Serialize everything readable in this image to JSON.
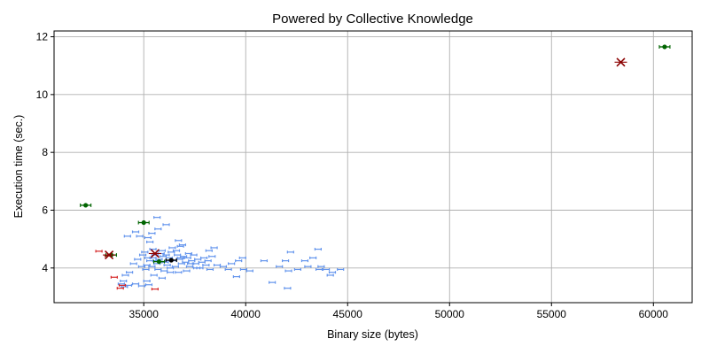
{
  "chart_data": {
    "type": "scatter",
    "title": "Powered by Collective Knowledge",
    "xlabel": "Binary size (bytes)",
    "ylabel": "Execution time (sec.)",
    "xlim": [
      30600,
      61900
    ],
    "ylim": [
      2.8,
      12.2
    ],
    "xticks": [
      35000,
      40000,
      45000,
      50000,
      55000,
      60000
    ],
    "yticks": [
      4,
      6,
      8,
      10,
      12
    ],
    "grid": true,
    "colors": {
      "cloud": "#6495ed",
      "red": "#d62728",
      "green": "#006400",
      "best": "#000000",
      "worst": "#8b0000",
      "grid": "#b0b0b0"
    },
    "series": [
      {
        "marker": "dash",
        "color": "#6495ed",
        "points": [
          [
            34950,
            4.45
          ],
          [
            35050,
            4.55
          ],
          [
            35200,
            4.35
          ],
          [
            35300,
            4.25
          ],
          [
            35450,
            4.65
          ],
          [
            35550,
            4.45
          ],
          [
            35650,
            4.15
          ],
          [
            35750,
            4.3
          ],
          [
            35850,
            4.5
          ],
          [
            35950,
            4.4
          ],
          [
            36050,
            4.2
          ],
          [
            36150,
            4.1
          ],
          [
            36250,
            4.35
          ],
          [
            36350,
            4.55
          ],
          [
            36450,
            4.25
          ],
          [
            36550,
            4.05
          ],
          [
            36650,
            4.45
          ],
          [
            36750,
            4.3
          ],
          [
            36850,
            4.15
          ],
          [
            36950,
            4.4
          ],
          [
            37050,
            4.2
          ],
          [
            37150,
            4.35
          ],
          [
            37250,
            4.05
          ],
          [
            37350,
            4.25
          ],
          [
            37450,
            4.45
          ],
          [
            37550,
            4.15
          ],
          [
            37650,
            4.3
          ],
          [
            37750,
            4.0
          ],
          [
            37850,
            4.2
          ],
          [
            37950,
            4.35
          ],
          [
            38050,
            4.1
          ],
          [
            38150,
            4.25
          ],
          [
            38250,
            3.95
          ],
          [
            38350,
            4.4
          ],
          [
            35400,
            4.05
          ],
          [
            35700,
            3.95
          ],
          [
            36000,
            3.9
          ],
          [
            36300,
            4.0
          ],
          [
            36700,
            3.85
          ],
          [
            37100,
            3.9
          ],
          [
            35150,
            4.1
          ],
          [
            35600,
            4.25
          ],
          [
            36100,
            4.45
          ],
          [
            36600,
            4.6
          ],
          [
            36900,
            4.8
          ],
          [
            37200,
            4.5
          ],
          [
            36400,
            4.7
          ],
          [
            35900,
            4.6
          ],
          [
            35300,
            4.9
          ],
          [
            36800,
            4.75
          ],
          [
            34600,
            5.25
          ],
          [
            34800,
            5.1
          ],
          [
            35200,
            5.05
          ],
          [
            35400,
            5.2
          ],
          [
            35700,
            5.35
          ],
          [
            36100,
            5.5
          ],
          [
            36700,
            4.95
          ],
          [
            34200,
            5.1
          ],
          [
            35650,
            5.75
          ],
          [
            38200,
            4.6
          ],
          [
            34500,
            4.15
          ],
          [
            34700,
            4.3
          ],
          [
            34900,
            4.05
          ],
          [
            35100,
            3.95
          ],
          [
            34300,
            3.85
          ],
          [
            34100,
            3.75
          ],
          [
            34000,
            3.55
          ],
          [
            33900,
            3.45
          ],
          [
            34250,
            3.4
          ],
          [
            34600,
            3.45
          ],
          [
            34900,
            3.38
          ],
          [
            35250,
            3.42
          ],
          [
            35150,
            3.55
          ],
          [
            34050,
            3.35
          ],
          [
            35500,
            3.75
          ],
          [
            35900,
            3.65
          ],
          [
            36300,
            3.85
          ],
          [
            37300,
            4.15
          ],
          [
            37600,
            4.0
          ],
          [
            38600,
            4.1
          ],
          [
            38900,
            4.05
          ],
          [
            39300,
            4.15
          ],
          [
            39650,
            4.25
          ],
          [
            39850,
            4.35
          ],
          [
            39150,
            3.95
          ],
          [
            39550,
            3.7
          ],
          [
            39900,
            3.95
          ],
          [
            40900,
            4.25
          ],
          [
            41300,
            3.5
          ],
          [
            41650,
            4.05
          ],
          [
            41950,
            4.25
          ],
          [
            42100,
            3.9
          ],
          [
            42200,
            4.55
          ],
          [
            42550,
            3.95
          ],
          [
            42900,
            4.25
          ],
          [
            43050,
            4.05
          ],
          [
            43300,
            4.35
          ],
          [
            43550,
            4.65
          ],
          [
            43700,
            4.05
          ],
          [
            43950,
            3.95
          ],
          [
            44150,
            3.75
          ],
          [
            44650,
            3.95
          ],
          [
            44250,
            3.85
          ],
          [
            43600,
            3.95
          ],
          [
            42050,
            3.3
          ],
          [
            40200,
            3.9
          ],
          [
            38450,
            4.7
          ],
          [
            36800,
            4.35
          ],
          [
            35450,
            4.35
          ],
          [
            36200,
            4.25
          ]
        ]
      },
      {
        "marker": "dash",
        "color": "#d62728",
        "points": [
          [
            32800,
            4.58
          ],
          [
            33550,
            3.68
          ],
          [
            33250,
            4.42
          ],
          [
            33950,
            3.4
          ],
          [
            35550,
            3.27
          ],
          [
            33850,
            3.3
          ]
        ]
      },
      {
        "marker": "plus",
        "color": "#006400",
        "points": [
          [
            32150,
            6.17
          ],
          [
            35000,
            5.57
          ],
          [
            35750,
            4.22
          ],
          [
            60550,
            11.65
          ],
          [
            33400,
            4.45
          ]
        ]
      },
      {
        "marker": "x",
        "color": "#8b0000",
        "points": [
          [
            33300,
            4.45
          ],
          [
            35550,
            4.5
          ],
          [
            58400,
            11.12
          ]
        ]
      },
      {
        "marker": "plus",
        "color": "#000000",
        "points": [
          [
            36350,
            4.27
          ]
        ]
      }
    ]
  }
}
